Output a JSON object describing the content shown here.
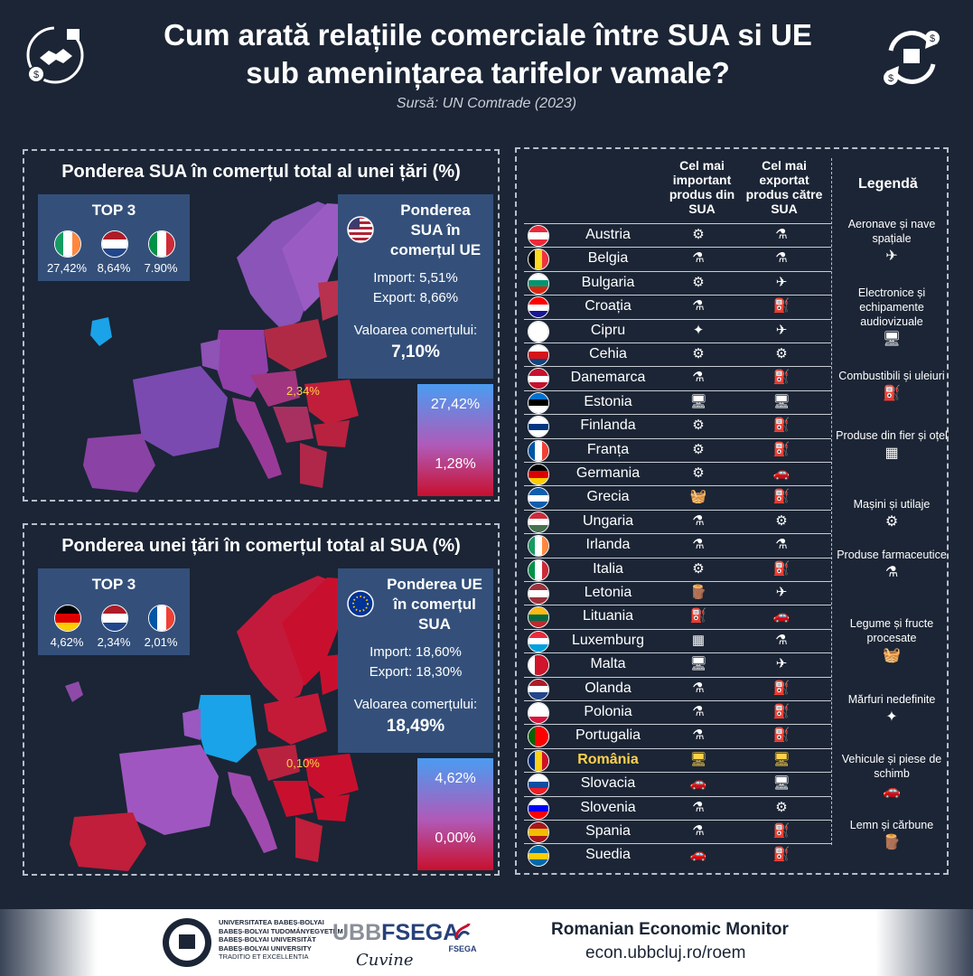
{
  "header": {
    "title_line1": "Cum arată relațiile comerciale  între SUA si UE",
    "title_line2": "sub amenințarea tarifelor vamale?",
    "source": "Sursă: UN Comtrade (2023)"
  },
  "panel1": {
    "title": "Ponderea SUA în comerțul total al unei țări (%)",
    "top3_title": "TOP 3",
    "top3": [
      {
        "flag": "ireland",
        "value": "27,42%"
      },
      {
        "flag": "netherlands",
        "value": "8,64%"
      },
      {
        "flag": "italy",
        "value": "7.90%"
      }
    ],
    "info_title_line1": "Ponderea",
    "info_title_line2": "SUA în",
    "info_title_line3": "comerțul UE",
    "import": "Import: 5,51%",
    "export": "Export: 8,66%",
    "value_label": "Valoarea comerțului:",
    "value": "7,10%",
    "scale_max": "27,42%",
    "scale_min": "1,28%",
    "romania_tag": "2,34%"
  },
  "panel2": {
    "title": "Ponderea unei țări în comerțul total al SUA (%)",
    "top3_title": "TOP 3",
    "top3": [
      {
        "flag": "germany",
        "value": "4,62%"
      },
      {
        "flag": "netherlands",
        "value": "2,34%"
      },
      {
        "flag": "france",
        "value": "2,01%"
      }
    ],
    "info_title_line1": "Ponderea UE",
    "info_title_line2": "în comerțul",
    "info_title_line3": "SUA",
    "import": "Import: 18,60%",
    "export": "Export: 18,30%",
    "value_label": "Valoarea comerțului:",
    "value": "18,49%",
    "scale_max": "4,62%",
    "scale_min": "0,00%",
    "romania_tag": "0,10%"
  },
  "table": {
    "col_import": [
      "Cel mai",
      "important",
      "produs din",
      "SUA"
    ],
    "col_export": [
      "Cel mai",
      "exportat",
      "produs către",
      "SUA"
    ],
    "rows": [
      {
        "name": "Austria",
        "flag": [
          "#ed2939",
          "#ffffff",
          "#ed2939"
        ],
        "imp": "⚙",
        "exp": "⚗"
      },
      {
        "name": "Belgia",
        "flag": [
          "#000000",
          "#fdda24",
          "#ef3340"
        ],
        "vert": true,
        "imp": "⚗",
        "exp": "⚗"
      },
      {
        "name": "Bulgaria",
        "flag": [
          "#ffffff",
          "#00966e",
          "#d62612"
        ],
        "imp": "⚙",
        "exp": "✈"
      },
      {
        "name": "Croația",
        "flag": [
          "#ff0000",
          "#ffffff",
          "#171796"
        ],
        "imp": "⚗",
        "exp": "⛽"
      },
      {
        "name": "Cipru",
        "flag": [
          "#ffffff",
          "#ffffff",
          "#ffffff"
        ],
        "imp": "✦",
        "exp": "✈"
      },
      {
        "name": "Cehia",
        "flag": [
          "#ffffff",
          "#d7141a",
          "#11457e"
        ],
        "imp": "⚙",
        "exp": "⚙"
      },
      {
        "name": "Danemarca",
        "flag": [
          "#c8102e",
          "#ffffff",
          "#c8102e"
        ],
        "imp": "⚗",
        "exp": "⛽"
      },
      {
        "name": "Estonia",
        "flag": [
          "#0072ce",
          "#000000",
          "#ffffff"
        ],
        "imp": "🖥",
        "exp": "🖥"
      },
      {
        "name": "Finlanda",
        "flag": [
          "#ffffff",
          "#003580",
          "#ffffff"
        ],
        "imp": "⚙",
        "exp": "⛽"
      },
      {
        "name": "Franța",
        "flag": [
          "#0055a4",
          "#ffffff",
          "#ef4135"
        ],
        "vert": true,
        "imp": "⚙",
        "exp": "⛽"
      },
      {
        "name": "Germania",
        "flag": [
          "#000000",
          "#dd0000",
          "#ffce00"
        ],
        "imp": "⚙",
        "exp": "🚗"
      },
      {
        "name": "Grecia",
        "flag": [
          "#0d5eaf",
          "#ffffff",
          "#0d5eaf"
        ],
        "imp": "🧺",
        "exp": "⛽"
      },
      {
        "name": "Ungaria",
        "flag": [
          "#ce2939",
          "#ffffff",
          "#477050"
        ],
        "imp": "⚗",
        "exp": "⚙"
      },
      {
        "name": "Irlanda",
        "flag": [
          "#169b62",
          "#ffffff",
          "#ff883e"
        ],
        "vert": true,
        "imp": "⚗",
        "exp": "⚗"
      },
      {
        "name": "Italia",
        "flag": [
          "#009246",
          "#ffffff",
          "#ce2b37"
        ],
        "vert": true,
        "imp": "⚙",
        "exp": "⛽"
      },
      {
        "name": "Letonia",
        "flag": [
          "#9e3039",
          "#ffffff",
          "#9e3039"
        ],
        "imp": "🪵",
        "exp": "✈"
      },
      {
        "name": "Lituania",
        "flag": [
          "#fdb913",
          "#006a44",
          "#c1272d"
        ],
        "imp": "⛽",
        "exp": "🚗"
      },
      {
        "name": "Luxemburg",
        "flag": [
          "#ed2939",
          "#ffffff",
          "#00a1de"
        ],
        "imp": "▦",
        "exp": "⚗"
      },
      {
        "name": "Malta",
        "flag": [
          "#ffffff",
          "#cf142b",
          "#cf142b"
        ],
        "vert": true,
        "imp": "🖥",
        "exp": "✈"
      },
      {
        "name": "Olanda",
        "flag": [
          "#ae1c28",
          "#ffffff",
          "#21468b"
        ],
        "imp": "⚗",
        "exp": "⛽"
      },
      {
        "name": "Polonia",
        "flag": [
          "#ffffff",
          "#ffffff",
          "#dc143c"
        ],
        "imp": "⚗",
        "exp": "⛽"
      },
      {
        "name": "Portugalia",
        "flag": [
          "#006600",
          "#ff0000",
          "#ff0000"
        ],
        "vert": true,
        "imp": "⚗",
        "exp": "⛽"
      },
      {
        "name": "România",
        "flag": [
          "#002b7f",
          "#fcd116",
          "#ce1126"
        ],
        "vert": true,
        "highlight": true,
        "imp": "🖥",
        "exp": "🖥"
      },
      {
        "name": "Slovacia",
        "flag": [
          "#ffffff",
          "#0b4ea2",
          "#ee1c25"
        ],
        "imp": "🚗",
        "exp": "🖥"
      },
      {
        "name": "Slovenia",
        "flag": [
          "#ffffff",
          "#0000ff",
          "#ff0000"
        ],
        "imp": "⚗",
        "exp": "⚙"
      },
      {
        "name": "Spania",
        "flag": [
          "#aa151b",
          "#f1bf00",
          "#aa151b"
        ],
        "imp": "⚗",
        "exp": "⛽"
      },
      {
        "name": "Suedia",
        "flag": [
          "#006aa7",
          "#fecc00",
          "#006aa7"
        ],
        "imp": "🚗",
        "exp": "⛽"
      }
    ]
  },
  "legend": {
    "title": "Legendă",
    "items": [
      {
        "label": "Aeronave și nave spațiale",
        "icon": "✈"
      },
      {
        "label": "Electronice și echipamente audiovizuale",
        "icon": "🖥"
      },
      {
        "label": "Combustibili și uleiuri",
        "icon": "⛽"
      },
      {
        "label": "Produse din fier și oțel",
        "icon": "▦"
      },
      {
        "label": "Mașini și utilaje",
        "icon": "⚙"
      },
      {
        "label": "Produse farmaceutice",
        "icon": "⚗"
      },
      {
        "label": "Legume și fructe procesate",
        "icon": "🧺"
      },
      {
        "label": "Mărfuri nedefinite",
        "icon": "✦"
      },
      {
        "label": "Vehicule și piese de schimb",
        "icon": "🚗"
      },
      {
        "label": "Lemn și cărbune",
        "icon": "🪵"
      }
    ]
  },
  "footer": {
    "univ_lines": [
      "UNIVERSITATEA BABEȘ-BOLYAI",
      "BABEȘ-BOLYAI TUDOMÁNYEGYETEM",
      "BABEȘ-BOLYAI UNIVERSITÄT",
      "BABEȘ-BOLYAI UNIVERSITY",
      "TRADITIO ET EXCELLENTIA"
    ],
    "ubb": "UBB",
    "fsega": "FSEGA",
    "fsega_small": "FSEGA",
    "sub": "Cuvine",
    "monitor": "Romanian Economic Monitor",
    "url": "econ.ubbcluj.ro/roem"
  }
}
